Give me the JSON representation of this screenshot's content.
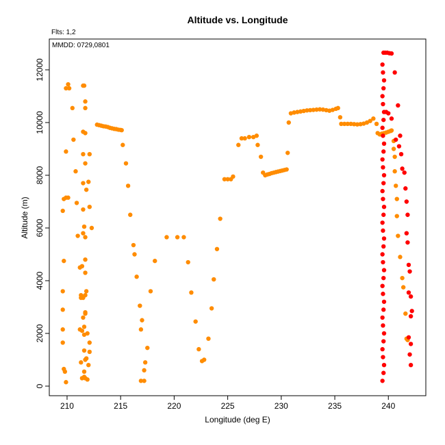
{
  "chart_data": {
    "type": "scatter",
    "title": "Altitude vs. Longitude",
    "annotations": [
      "Flts: 1,2",
      "MMDD: 0729,0801"
    ],
    "x_label": "Longitude (deg E)",
    "y_label": "Altitude (m)",
    "xlim": [
      208.34,
      243.5
    ],
    "ylim": [
      -364,
      13169
    ],
    "xticks": [
      210,
      215,
      220,
      225,
      230,
      235,
      240
    ],
    "yticks": [
      0,
      2000,
      4000,
      6000,
      8000,
      10000,
      12000
    ],
    "series": [
      {
        "color": "#ff8c00",
        "x": [
          209.7,
          209.9,
          210.1,
          209.6,
          209.7,
          209.6,
          209.6,
          209.6,
          209.6,
          209.7,
          209.8,
          209.9,
          209.9,
          210.1,
          210.2,
          209.9,
          210.5,
          210.6,
          210.8,
          210.9,
          211,
          211.2,
          211.3,
          211.3,
          211.2,
          211.3,
          211.4,
          211.6,
          211.5,
          211.6,
          211.7,
          211.7,
          211.5,
          211.7,
          211.5,
          211.7,
          211.5,
          211.8,
          211.5,
          211.6,
          211.7,
          211.5,
          211.4,
          211.7,
          211.7,
          211.8,
          211.7,
          211.5,
          211.7,
          211.7,
          211.5,
          211.6,
          211.4,
          211.6,
          211.9,
          212.1,
          211.6,
          212.1,
          211.7,
          211.8,
          212,
          211.6,
          211.7,
          211.9,
          212.1,
          212,
          212.1,
          212.3,
          212.8,
          213.0,
          213.2,
          213.4,
          213.6,
          213.8,
          214.0,
          214.2,
          214.4,
          214.6,
          214.8,
          215.0,
          215.1,
          215.2,
          215.5,
          215.7,
          215.9,
          216.2,
          216.3,
          216.5,
          216.8,
          217,
          216.9,
          217.5,
          217.3,
          217.2,
          216.9,
          217.2,
          218.2,
          217.8,
          219.3,
          220.3,
          220.9,
          221.3,
          221.6,
          222,
          222.3,
          222.6,
          222.8,
          223.2,
          223.5,
          223.7,
          224,
          224.3,
          224.7,
          225,
          225.3,
          225.5,
          226,
          226.3,
          226.6,
          227,
          227.4,
          227.7,
          227.8,
          228.1,
          228.3,
          228.5,
          228.7,
          228.9,
          229.1,
          229.3,
          229.5,
          229.7,
          229.9,
          230.1,
          230.3,
          230.5,
          230.6,
          230.7,
          230.9,
          231.2,
          231.5,
          231.8,
          232.1,
          232.4,
          232.7,
          233,
          233.3,
          233.6,
          233.9,
          234.2,
          234.5,
          234.8,
          235.1,
          235.3,
          235.5,
          235.6,
          235.9,
          236.2,
          236.5,
          236.8,
          237.1,
          237.4,
          237.7,
          238,
          238.3,
          238.6,
          238.9,
          239.0,
          239.2,
          239.4,
          239.6,
          239.8,
          240.0,
          240.2,
          240.3,
          240.5,
          240.5,
          240.6,
          240.6,
          240.7,
          240.8,
          240.8,
          240.9,
          241.1,
          241.3,
          241.4,
          241.6,
          241.7,
          241.8
        ],
        "values": [
          7100,
          7150,
          7150,
          6650,
          4750,
          3600,
          2900,
          2150,
          1650,
          650,
          550,
          150,
          8900,
          11450,
          11300,
          11300,
          10550,
          9350,
          8150,
          6950,
          5700,
          4500,
          3450,
          3350,
          2150,
          900,
          300,
          350,
          11400,
          11400,
          10800,
          10550,
          9650,
          9600,
          8800,
          8450,
          7700,
          7450,
          6700,
          6050,
          5650,
          5800,
          4550,
          4800,
          4300,
          3600,
          3450,
          3350,
          2800,
          2750,
          2600,
          2250,
          2100,
          1950,
          2000,
          1650,
          1350,
          1300,
          1000,
          1050,
          800,
          550,
          300,
          250,
          8800,
          7750,
          6800,
          6000,
          9920,
          9900,
          9880,
          9860,
          9850,
          9830,
          9800,
          9780,
          9760,
          9750,
          9730,
          9720,
          9710,
          9150,
          8450,
          7600,
          6500,
          5350,
          5000,
          4150,
          3050,
          2500,
          2150,
          1450,
          900,
          600,
          200,
          200,
          4750,
          3600,
          5650,
          5650,
          5650,
          4700,
          3550,
          2450,
          1400,
          950,
          1000,
          1800,
          2950,
          4050,
          5200,
          6350,
          7850,
          7850,
          7850,
          7950,
          9150,
          9400,
          9400,
          9450,
          9450,
          9500,
          9150,
          8700,
          8100,
          8000,
          8030,
          8050,
          8080,
          8100,
          8120,
          8140,
          8160,
          8180,
          8200,
          8220,
          8850,
          10000,
          10350,
          10380,
          10400,
          10420,
          10440,
          10460,
          10470,
          10480,
          10490,
          10500,
          10490,
          10470,
          10450,
          10480,
          10520,
          10550,
          10200,
          9950,
          9950,
          9950,
          9950,
          9940,
          9930,
          9940,
          9960,
          10000,
          10060,
          10150,
          9950,
          9600,
          9550,
          9580,
          9600,
          9620,
          9650,
          9680,
          9700,
          9300,
          9000,
          8700,
          8150,
          7600,
          7100,
          6450,
          5700,
          4900,
          4100,
          3750,
          2750,
          1800,
          1750
        ]
      },
      {
        "color": "#ff0000",
        "x": [
          239.45,
          239.55,
          239.6,
          239.5,
          239.45,
          239.55,
          239.6,
          239.5,
          239.45,
          239.55,
          239.6,
          239.5,
          239.45,
          239.55,
          239.6,
          239.5,
          239.45,
          239.55,
          239.6,
          239.5,
          239.45,
          239.55,
          239.6,
          239.5,
          239.45,
          239.55,
          239.6,
          239.5,
          239.45,
          239.55,
          239.6,
          239.5,
          239.45,
          239.55,
          239.6,
          239.5,
          239.45,
          239.55,
          239.6,
          239.5,
          239.45,
          239.55,
          239.7,
          239.9,
          240.1,
          240.3,
          240.6,
          240.9,
          239.8,
          240,
          240.3,
          240.7,
          241,
          241.1,
          241.2,
          241.3,
          241.5,
          241.6,
          241.7,
          241.8,
          241.7,
          241.8,
          241.9,
          242,
          241.9,
          242.1,
          242.2,
          242.1,
          241.9,
          242.1,
          242,
          242.1
        ],
        "values": [
          200,
          500,
          800,
          1100,
          1400,
          1700,
          2000,
          2300,
          2600,
          2900,
          3200,
          3500,
          3800,
          4100,
          4400,
          4700,
          5000,
          5300,
          5600,
          5900,
          6200,
          6500,
          6800,
          7100,
          7400,
          7700,
          8000,
          8300,
          8600,
          8900,
          9200,
          9500,
          9800,
          10100,
          10400,
          10700,
          11000,
          11300,
          11600,
          11900,
          12200,
          12650,
          12650,
          12650,
          12630,
          12620,
          11900,
          10650,
          10400,
          10350,
          10150,
          9350,
          9100,
          9500,
          8800,
          8250,
          8100,
          7500,
          7000,
          6500,
          5800,
          5450,
          4600,
          4350,
          3550,
          3400,
          2850,
          2650,
          1850,
          1600,
          1200,
          800
        ]
      }
    ]
  }
}
